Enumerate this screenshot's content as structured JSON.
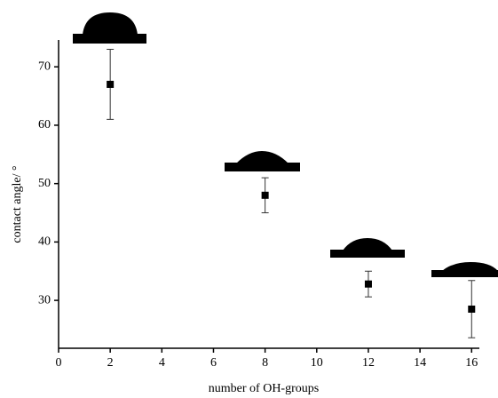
{
  "chart_data": {
    "type": "scatter",
    "xlabel": "number of OH-groups",
    "ylabel": "contact angle/ °",
    "x": [
      2,
      8,
      12,
      16
    ],
    "values": [
      67,
      48,
      32.8,
      28.5
    ],
    "errors": [
      6,
      3,
      2.2,
      4.9
    ],
    "color": "#000000",
    "xlim": [
      0,
      16.3
    ],
    "xticks": [
      0,
      2,
      4,
      6,
      8,
      10,
      12,
      14,
      16
    ],
    "ylim": [
      21.8,
      74.6
    ],
    "yticks": [
      30,
      40,
      50,
      60,
      70
    ]
  }
}
